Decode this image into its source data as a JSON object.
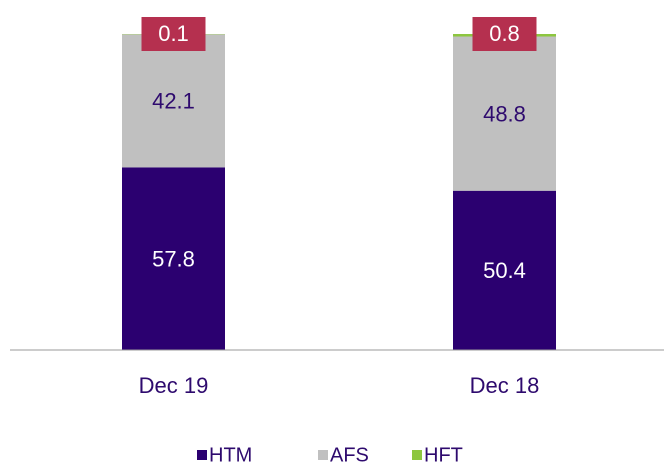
{
  "chart_data": {
    "type": "stacked_bar",
    "categories": [
      "Dec 19",
      "Dec 18"
    ],
    "series": [
      {
        "name": "HTM",
        "color": "#2b0070",
        "values": [
          57.8,
          50.4
        ]
      },
      {
        "name": "AFS",
        "color": "#c0c0c0",
        "values": [
          42.1,
          48.8
        ]
      },
      {
        "name": "HFT",
        "color": "#8dc63f",
        "values": [
          0.1,
          0.8
        ]
      }
    ],
    "ylim": [
      0,
      100
    ]
  }
}
